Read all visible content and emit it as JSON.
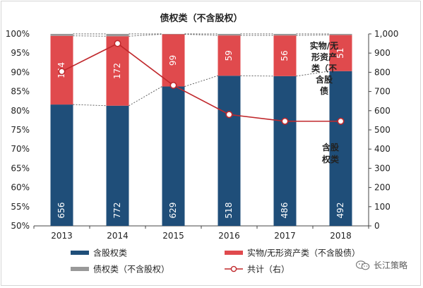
{
  "chart_data": {
    "type": "bar",
    "title": "债权类（不含股权）",
    "categories": [
      "2013",
      "2014",
      "2015",
      "2016",
      "2017",
      "2018"
    ],
    "series": [
      {
        "name": "含股权类",
        "kind": "stacked-bar",
        "axis": "left",
        "color": "#1f4e79",
        "share": [
          81.6,
          81.3,
          86.3,
          89.1,
          89.0,
          90.3
        ],
        "labels": [
          "656",
          "772",
          "629",
          "518",
          "486",
          "492"
        ]
      },
      {
        "name": "实物/无形资产类（不含股债）",
        "kind": "stacked-bar",
        "axis": "left",
        "color": "#e04a4d",
        "share": [
          17.9,
          18.1,
          13.6,
          10.5,
          10.6,
          9.4
        ],
        "labels": [
          "144",
          "172",
          "99",
          "59",
          "56",
          "51"
        ]
      },
      {
        "name": "债权类（不含股权）",
        "kind": "stacked-bar",
        "axis": "left",
        "color": "#999999",
        "share": [
          0.5,
          0.6,
          0.1,
          0.4,
          0.4,
          0.3
        ],
        "labels": []
      },
      {
        "name": "共计（右）",
        "kind": "line",
        "axis": "right",
        "color": "#c0282c",
        "values": [
          804,
          950,
          732,
          580,
          545,
          545
        ]
      }
    ],
    "left_axis": {
      "min": 50,
      "max": 100,
      "step": 5,
      "ticks": [
        "50%",
        "55%",
        "60%",
        "65%",
        "70%",
        "75%",
        "80%",
        "85%",
        "90%",
        "95%",
        "100%"
      ]
    },
    "right_axis": {
      "min": 0,
      "max": 1000,
      "step": 100,
      "ticks": [
        "0",
        "100",
        "200",
        "300",
        "400",
        "500",
        "600",
        "700",
        "800",
        "900",
        "1,000"
      ]
    },
    "annotations": [
      "实物/无形资产类（不含股债）",
      "含股权类"
    ],
    "grid": false,
    "legend": "bottom"
  },
  "annotation_lines": {
    "real_asset": [
      "实物/无",
      "形资产",
      "类（不",
      "含股",
      "债"
    ],
    "equity": [
      "含股",
      "权类"
    ]
  },
  "watermark": {
    "icon": "wechat-icon",
    "text": "长江策略"
  }
}
